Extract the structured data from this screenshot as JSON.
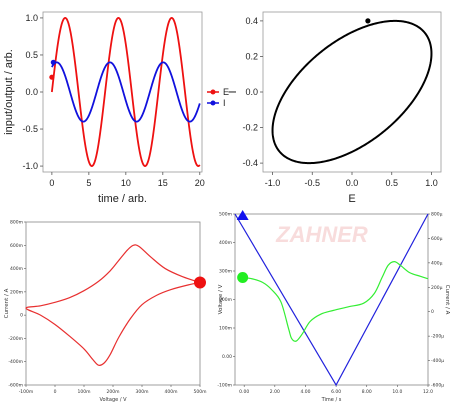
{
  "chart_data": [
    {
      "type": "line",
      "xlabel": "time / arb.",
      "ylabel": "input/output / arb.",
      "xlim": [
        -1.2,
        20.3
      ],
      "ylim": [
        -1.08,
        1.08
      ],
      "xticks": [
        "0",
        "5",
        "10",
        "15",
        "20"
      ],
      "yticks": [
        "1.0",
        "0.5",
        "0.0",
        "-0.5",
        "-1.0"
      ],
      "legend_position": "right",
      "series": [
        {
          "name": "E",
          "color": "#ee1111",
          "function": "sin",
          "amplitude": 1.0,
          "period": 7.2,
          "phase": 0,
          "x": [
            0,
            20
          ],
          "marker": [
            0,
            0.2
          ]
        },
        {
          "name": "I",
          "color": "#1111dd",
          "function": "sin",
          "amplitude": 0.4,
          "period": 7.2,
          "phase": 1.0,
          "x": [
            0,
            20
          ],
          "marker": [
            0.2,
            0.4
          ]
        }
      ]
    },
    {
      "type": "line",
      "xlabel": "E",
      "ylabel": "I",
      "xlim": [
        -1.12,
        1.12
      ],
      "ylim": [
        -0.45,
        0.45
      ],
      "xticks": [
        "-1.0",
        "-0.5",
        "0.0",
        "0.5",
        "1.0"
      ],
      "yticks": [
        "0.4",
        "0.2",
        "0.0",
        "-0.2",
        "-0.4"
      ],
      "series": [
        {
          "name": "",
          "color": "#000000",
          "ellipse": {
            "amplitude_x": 1.0,
            "amplitude_y": 0.4,
            "phase": 1.0
          },
          "marker": [
            0.2,
            0.4
          ]
        }
      ]
    },
    {
      "type": "line",
      "xlabel": "Voltage / V",
      "ylabel": "Current / A",
      "xlim": [
        -100,
        500
      ],
      "ylim": [
        -600,
        800
      ],
      "xticks": [
        "-100m",
        "0",
        "100m",
        "200m",
        "300m",
        "400m",
        "500m"
      ],
      "yticks": [
        "800m",
        "600m",
        "400m",
        "200m",
        "0",
        "-200m",
        "-400m",
        "-600m"
      ],
      "series": [
        {
          "name": "",
          "color": "#e83030",
          "x": [
            500,
            440,
            380,
            330,
            290,
            270,
            250,
            220,
            190,
            150,
            100,
            50,
            0,
            -50,
            -100,
            -50,
            0,
            50,
            100,
            130,
            150,
            170,
            190,
            220,
            260,
            300,
            350,
            400,
            460,
            500
          ],
          "y": [
            280,
            330,
            400,
            500,
            590,
            600,
            560,
            470,
            380,
            290,
            210,
            150,
            110,
            80,
            60,
            0,
            -80,
            -180,
            -290,
            -380,
            -430,
            -410,
            -340,
            -190,
            -30,
            90,
            170,
            220,
            260,
            280
          ],
          "marker": [
            500,
            280
          ]
        }
      ]
    },
    {
      "type": "line",
      "xlabel": "Time / s",
      "ylabel": "Voltage / V",
      "y2label": "Current / A",
      "xlim": [
        -0.6,
        12
      ],
      "ylim": [
        -100,
        500
      ],
      "y2lim": [
        -600,
        800
      ],
      "xticks": [
        "0.00",
        "2.00",
        "4.00",
        "6.00",
        "8.00",
        "10.0",
        "12.0"
      ],
      "yticks": [
        "500m",
        "400m",
        "300m",
        "200m",
        "100m",
        "0.00",
        "-100m"
      ],
      "y2ticks": [
        "800µ",
        "600µ",
        "400µ",
        "200µ",
        "0",
        "-200µ",
        "-400µ",
        "-600µ"
      ],
      "watermark": "ZAHNER",
      "series": [
        {
          "name": "",
          "color": "#2222dd",
          "axis": "left",
          "x": [
            -0.6,
            6,
            12
          ],
          "y": [
            500,
            -100,
            500
          ],
          "marker": [
            -0.1,
            500
          ]
        },
        {
          "name": "",
          "color": "#33ee33",
          "axis": "right",
          "x": [
            -0.1,
            0.5,
            1.2,
            1.8,
            2.4,
            2.9,
            3.1,
            3.4,
            3.8,
            4.3,
            5.0,
            5.8,
            6.8,
            7.8,
            8.5,
            9.0,
            9.4,
            9.8,
            10.2,
            10.8,
            11.5,
            12
          ],
          "y": [
            280,
            270,
            240,
            180,
            80,
            -140,
            -220,
            -240,
            -180,
            -80,
            -20,
            10,
            40,
            70,
            150,
            280,
            380,
            410,
            380,
            320,
            290,
            270
          ],
          "marker": [
            -0.1,
            280
          ]
        }
      ]
    }
  ]
}
